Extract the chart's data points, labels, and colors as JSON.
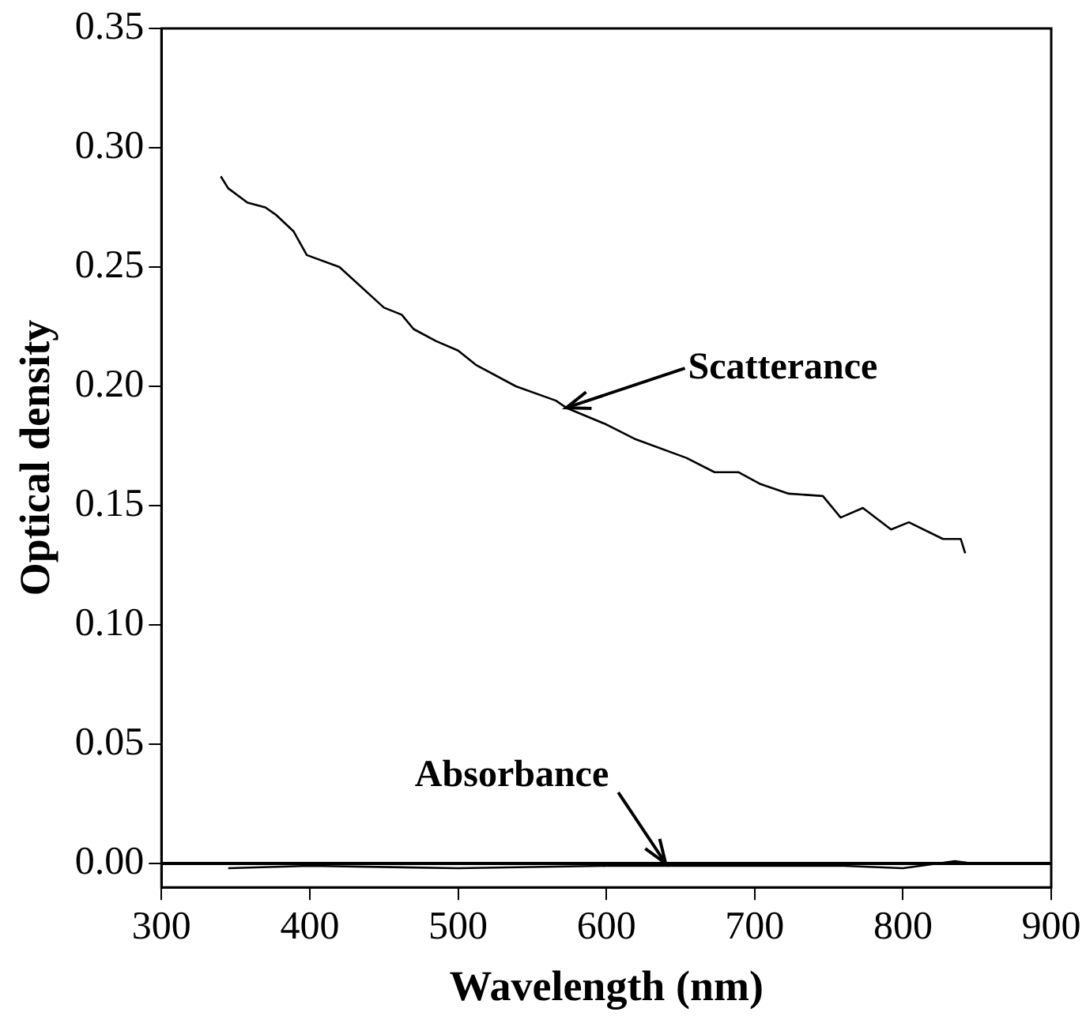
{
  "chart_data": {
    "type": "line",
    "xlabel": "Wavelength (nm)",
    "ylabel": "Optical density",
    "xlim": [
      300,
      900
    ],
    "xticks": [
      300,
      400,
      500,
      600,
      700,
      800,
      900
    ],
    "ylim": [
      -0.01,
      0.35
    ],
    "yticks": [
      {
        "value": 0,
        "label": "0.00"
      },
      {
        "value": 0.05,
        "label": "0.05"
      },
      {
        "value": 0.1,
        "label": "0.10"
      },
      {
        "value": 0.15,
        "label": "0.15"
      },
      {
        "value": 0.2,
        "label": "0.20"
      },
      {
        "value": 0.25,
        "label": "0.25"
      },
      {
        "value": 0.3,
        "label": "0.30"
      },
      {
        "value": 0.35,
        "label": "0.35"
      }
    ],
    "grid": false,
    "legend": false,
    "marker": "none",
    "line_style": "solid",
    "series": [
      {
        "color": "#000000",
        "x": [
          340,
          345,
          358,
          370,
          377,
          389,
          398,
          420,
          450,
          462,
          470,
          485,
          500,
          512,
          539,
          566,
          573,
          600,
          619,
          654,
          673,
          689,
          704,
          723,
          746,
          758,
          773,
          792,
          804,
          827,
          839,
          842
        ],
        "values": [
          0.288,
          0.283,
          0.277,
          0.275,
          0.272,
          0.265,
          0.255,
          0.25,
          0.233,
          0.23,
          0.224,
          0.219,
          0.215,
          0.209,
          0.2,
          0.194,
          0.191,
          0.184,
          0.178,
          0.17,
          0.164,
          0.164,
          0.159,
          0.155,
          0.154,
          0.145,
          0.149,
          0.14,
          0.143,
          0.136,
          0.136,
          0.13
        ]
      },
      {
        "color": "#000000",
        "x": [
          345,
          400,
          500,
          600,
          640,
          700,
          760,
          800,
          835,
          847
        ],
        "values": [
          -0.002,
          -0.001,
          -0.002,
          -0.001,
          -0.001,
          -0.001,
          -0.001,
          -0.002,
          0.001,
          0
        ]
      }
    ],
    "ref_lines": [
      {
        "axis": "y",
        "value": 0,
        "color": "#000000",
        "line_style": "solid"
      }
    ],
    "annotations": [
      {
        "text": "Scatterance",
        "x": 573,
        "y": 0.191
      },
      {
        "text": "Absorbance",
        "x": 640,
        "y": 0
      }
    ]
  }
}
